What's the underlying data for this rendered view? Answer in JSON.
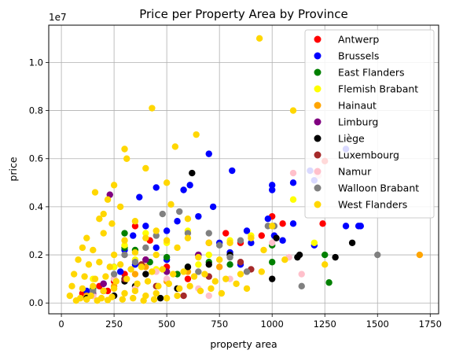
{
  "chart_data": {
    "type": "scatter",
    "title": "Price per Property Area by Province",
    "xlabel": "property area",
    "ylabel": "price",
    "y_offset_label": "1e7",
    "xlim": [
      -60,
      1790
    ],
    "ylim": [
      -450000,
      11550000
    ],
    "x_ticks": [
      0,
      250,
      500,
      750,
      1000,
      1250,
      1500,
      1750
    ],
    "x_tick_labels": [
      "0",
      "250",
      "500",
      "750",
      "1000",
      "1250",
      "1500",
      "1750"
    ],
    "y_ticks": [
      0,
      2000000,
      4000000,
      6000000,
      8000000,
      10000000
    ],
    "y_tick_labels": [
      "0.0",
      "0.2",
      "0.4",
      "0.6",
      "0.8",
      "1.0"
    ],
    "grid": true,
    "legend_position": "top-right",
    "series": [
      {
        "name": "Antwerp",
        "color": "#ff0000",
        "points": [
          [
            100,
            400000
          ],
          [
            180,
            700000
          ],
          [
            250,
            900000
          ],
          [
            300,
            1200000
          ],
          [
            350,
            3200000
          ],
          [
            420,
            2600000
          ],
          [
            500,
            1500000
          ],
          [
            650,
            2000000
          ],
          [
            780,
            2900000
          ],
          [
            850,
            2500000
          ],
          [
            950,
            2800000
          ],
          [
            1000,
            3600000
          ],
          [
            1050,
            3300000
          ],
          [
            1250,
            5900000
          ],
          [
            1240,
            3300000
          ],
          [
            150,
            300000
          ],
          [
            220,
            500000
          ],
          [
            600,
            1000000
          ],
          [
            700,
            2500000
          ],
          [
            400,
            1800000
          ]
        ]
      },
      {
        "name": "Brussels",
        "color": "#0000ff",
        "points": [
          [
            120,
            500000
          ],
          [
            200,
            800000
          ],
          [
            250,
            1500000
          ],
          [
            300,
            2200000
          ],
          [
            340,
            2800000
          ],
          [
            370,
            4400000
          ],
          [
            400,
            3200000
          ],
          [
            450,
            4800000
          ],
          [
            500,
            3000000
          ],
          [
            550,
            3400000
          ],
          [
            580,
            4700000
          ],
          [
            610,
            4900000
          ],
          [
            650,
            3600000
          ],
          [
            700,
            6200000
          ],
          [
            720,
            4000000
          ],
          [
            750,
            2500000
          ],
          [
            810,
            5500000
          ],
          [
            880,
            3000000
          ],
          [
            1000,
            4900000
          ],
          [
            1000,
            4700000
          ],
          [
            1100,
            5000000
          ],
          [
            1180,
            5500000
          ],
          [
            1200,
            5100000
          ],
          [
            1350,
            6400000
          ],
          [
            1410,
            3200000
          ],
          [
            1420,
            3200000
          ],
          [
            1350,
            3200000
          ],
          [
            1200,
            2400000
          ],
          [
            900,
            2500000
          ],
          [
            850,
            1600000
          ],
          [
            980,
            3500000
          ],
          [
            1010,
            2800000
          ],
          [
            1050,
            2600000
          ],
          [
            1100,
            3300000
          ],
          [
            800,
            2100000
          ],
          [
            650,
            2000000
          ],
          [
            500,
            1800000
          ],
          [
            450,
            2300000
          ],
          [
            350,
            1600000
          ],
          [
            280,
            1300000
          ]
        ]
      },
      {
        "name": "East Flanders",
        "color": "#008000",
        "points": [
          [
            150,
            600000
          ],
          [
            250,
            1000000
          ],
          [
            300,
            2900000
          ],
          [
            350,
            2200000
          ],
          [
            420,
            1700000
          ],
          [
            500,
            1900000
          ],
          [
            600,
            1500000
          ],
          [
            700,
            1700000
          ],
          [
            800,
            1600000
          ],
          [
            1000,
            2400000
          ],
          [
            1000,
            1700000
          ],
          [
            1250,
            2000000
          ],
          [
            1270,
            850000
          ],
          [
            300,
            2300000
          ],
          [
            550,
            1200000
          ]
        ]
      },
      {
        "name": "Flemish Brabant",
        "color": "#ffff00",
        "points": [
          [
            150,
            1000000
          ],
          [
            250,
            1500000
          ],
          [
            300,
            2400000
          ],
          [
            400,
            2900000
          ],
          [
            500,
            2500000
          ],
          [
            600,
            3000000
          ],
          [
            700,
            2000000
          ],
          [
            800,
            2600000
          ],
          [
            900,
            2800000
          ],
          [
            1100,
            4300000
          ],
          [
            1200,
            2500000
          ],
          [
            350,
            1800000
          ],
          [
            450,
            1400000
          ],
          [
            650,
            1600000
          ]
        ]
      },
      {
        "name": "Hainaut",
        "color": "#ffa500",
        "points": [
          [
            120,
            300000
          ],
          [
            250,
            700000
          ],
          [
            300,
            1000000
          ],
          [
            400,
            1500000
          ],
          [
            600,
            1300000
          ],
          [
            750,
            1500000
          ],
          [
            1700,
            2000000
          ],
          [
            500,
            900000
          ],
          [
            350,
            1200000
          ]
        ]
      },
      {
        "name": "Limburg",
        "color": "#800080",
        "points": [
          [
            150,
            400000
          ],
          [
            230,
            4500000
          ],
          [
            300,
            1000000
          ],
          [
            400,
            1800000
          ],
          [
            500,
            1300000
          ],
          [
            650,
            2000000
          ],
          [
            200,
            800000
          ]
        ]
      },
      {
        "name": "Liège",
        "color": "#000000",
        "points": [
          [
            120,
            200000
          ],
          [
            200,
            500000
          ],
          [
            300,
            900000
          ],
          [
            400,
            1200000
          ],
          [
            470,
            200000
          ],
          [
            600,
            1500000
          ],
          [
            620,
            5400000
          ],
          [
            700,
            1600000
          ],
          [
            800,
            2000000
          ],
          [
            1000,
            1000000
          ],
          [
            1020,
            2700000
          ],
          [
            1120,
            1900000
          ],
          [
            1130,
            2000000
          ],
          [
            1380,
            2500000
          ],
          [
            1300,
            1900000
          ],
          [
            250,
            300000
          ],
          [
            350,
            700000
          ],
          [
            550,
            600000
          ]
        ]
      },
      {
        "name": "Luxembourg",
        "color": "#a52a2a",
        "points": [
          [
            200,
            500000
          ],
          [
            300,
            1000000
          ],
          [
            450,
            700000
          ],
          [
            580,
            300000
          ],
          [
            700,
            1100000
          ],
          [
            900,
            1400000
          ],
          [
            850,
            1700000
          ],
          [
            380,
            1600000
          ]
        ]
      },
      {
        "name": "Namur",
        "color": "#ffc0cb",
        "points": [
          [
            150,
            300000
          ],
          [
            250,
            1000000
          ],
          [
            350,
            600000
          ],
          [
            500,
            1000000
          ],
          [
            700,
            300000
          ],
          [
            800,
            1000000
          ],
          [
            1000,
            2500000
          ],
          [
            1100,
            5400000
          ],
          [
            1210,
            5400000
          ],
          [
            1220,
            5300000
          ],
          [
            1080,
            1900000
          ],
          [
            1140,
            1200000
          ],
          [
            650,
            600000
          ],
          [
            450,
            1300000
          ]
        ]
      },
      {
        "name": "Walloon Brabant",
        "color": "#808080",
        "points": [
          [
            150,
            500000
          ],
          [
            250,
            1200000
          ],
          [
            300,
            2000000
          ],
          [
            400,
            2300000
          ],
          [
            480,
            3700000
          ],
          [
            560,
            3800000
          ],
          [
            600,
            2900000
          ],
          [
            700,
            2900000
          ],
          [
            750,
            2400000
          ],
          [
            800,
            1900000
          ],
          [
            850,
            2600000
          ],
          [
            980,
            3200000
          ],
          [
            1010,
            3200000
          ],
          [
            1140,
            700000
          ],
          [
            1500,
            2000000
          ],
          [
            450,
            2800000
          ],
          [
            350,
            1700000
          ],
          [
            650,
            1300000
          ],
          [
            880,
            1300000
          ]
        ]
      },
      {
        "name": "West Flanders",
        "color": "#ffd700",
        "points": [
          [
            940,
            11000000
          ],
          [
            430,
            8100000
          ],
          [
            1100,
            8000000
          ],
          [
            640,
            7000000
          ],
          [
            300,
            6400000
          ],
          [
            540,
            6500000
          ],
          [
            310,
            6000000
          ],
          [
            400,
            5600000
          ],
          [
            250,
            4900000
          ],
          [
            160,
            4600000
          ],
          [
            220,
            4300000
          ],
          [
            280,
            4000000
          ],
          [
            500,
            5000000
          ],
          [
            520,
            4100000
          ],
          [
            600,
            3500000
          ],
          [
            180,
            3500000
          ],
          [
            350,
            3400000
          ],
          [
            450,
            3000000
          ],
          [
            200,
            3700000
          ],
          [
            240,
            3300000
          ],
          [
            120,
            2700000
          ],
          [
            200,
            2900000
          ],
          [
            300,
            2600000
          ],
          [
            400,
            2700000
          ],
          [
            500,
            2600000
          ],
          [
            600,
            2700000
          ],
          [
            700,
            2500000
          ],
          [
            800,
            2500000
          ],
          [
            900,
            2700000
          ],
          [
            1000,
            3200000
          ],
          [
            100,
            2300000
          ],
          [
            150,
            2200000
          ],
          [
            250,
            2000000
          ],
          [
            350,
            2100000
          ],
          [
            450,
            2000000
          ],
          [
            550,
            2300000
          ],
          [
            650,
            1900000
          ],
          [
            750,
            1800000
          ],
          [
            850,
            1200000
          ],
          [
            950,
            1300000
          ],
          [
            80,
            1800000
          ],
          [
            130,
            1600000
          ],
          [
            180,
            1700000
          ],
          [
            230,
            1500000
          ],
          [
            280,
            1600000
          ],
          [
            330,
            1400000
          ],
          [
            380,
            1500000
          ],
          [
            430,
            1300000
          ],
          [
            480,
            1400000
          ],
          [
            530,
            1200000
          ],
          [
            580,
            1300000
          ],
          [
            630,
            1100000
          ],
          [
            680,
            1200000
          ],
          [
            730,
            900000
          ],
          [
            780,
            1000000
          ],
          [
            830,
            800000
          ],
          [
            880,
            600000
          ],
          [
            60,
            1200000
          ],
          [
            110,
            1100000
          ],
          [
            160,
            1000000
          ],
          [
            210,
            1100000
          ],
          [
            260,
            900000
          ],
          [
            310,
            1000000
          ],
          [
            360,
            800000
          ],
          [
            410,
            900000
          ],
          [
            460,
            700000
          ],
          [
            510,
            800000
          ],
          [
            560,
            600000
          ],
          [
            610,
            700000
          ],
          [
            660,
            500000
          ],
          [
            710,
            600000
          ],
          [
            760,
            400000
          ],
          [
            50,
            700000
          ],
          [
            100,
            600000
          ],
          [
            150,
            700000
          ],
          [
            200,
            500000
          ],
          [
            250,
            600000
          ],
          [
            300,
            400000
          ],
          [
            350,
            500000
          ],
          [
            400,
            300000
          ],
          [
            450,
            400000
          ],
          [
            500,
            200000
          ],
          [
            550,
            300000
          ],
          [
            40,
            300000
          ],
          [
            90,
            200000
          ],
          [
            140,
            300000
          ],
          [
            190,
            200000
          ],
          [
            240,
            250000
          ],
          [
            290,
            150000
          ],
          [
            340,
            200000
          ],
          [
            390,
            100000
          ],
          [
            440,
            150000
          ],
          [
            70,
            100000
          ],
          [
            120,
            150000
          ],
          [
            170,
            100000
          ],
          [
            220,
            120000
          ],
          [
            1250,
            1600000
          ],
          [
            1060,
            1800000
          ],
          [
            960,
            2200000
          ]
        ]
      }
    ]
  }
}
